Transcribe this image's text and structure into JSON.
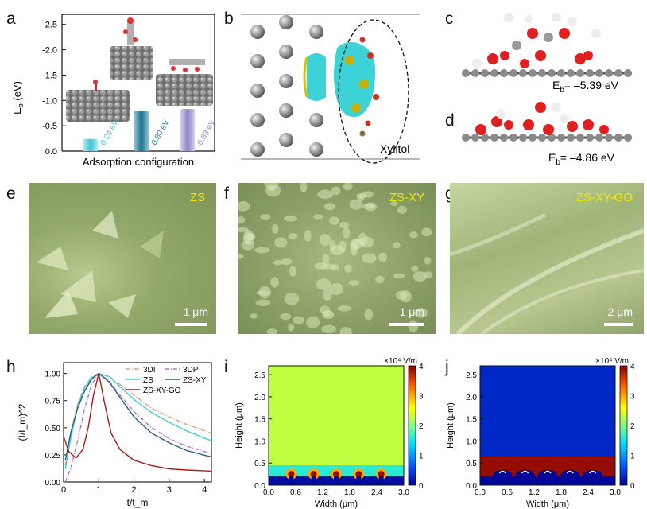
{
  "panels": {
    "a": "a",
    "b": "b",
    "c": "c",
    "d": "d",
    "e": "e",
    "f": "f",
    "g": "g",
    "h": "h",
    "i": "i",
    "j": "j"
  },
  "panel_a": {
    "ylabel_main": "E",
    "ylabel_sub": "b",
    "ylabel_unit": " (eV)",
    "xlabel": "Adsorption configuration",
    "yticks": [
      "-2.5",
      "-2.0",
      "-1.5",
      "-1.0",
      "-0.5",
      "0.0"
    ],
    "bars": [
      {
        "label": "-0.24 eV",
        "value": -0.24,
        "color": "#41c5d8"
      },
      {
        "label": "-0.80 eV",
        "value": -0.8,
        "color": "#2f7f9c"
      },
      {
        "label": "-0.83 eV",
        "value": -0.83,
        "color": "#9a8fd0"
      }
    ]
  },
  "panel_b": {
    "molecule": "Xylitol"
  },
  "panel_c": {
    "energy_prefix": "E",
    "energy_sub": "b",
    "energy_value": "= –5.39 eV"
  },
  "panel_d": {
    "energy_prefix": "E",
    "energy_sub": "b",
    "energy_value": "= –4.86 eV"
  },
  "panel_e": {
    "label": "ZS",
    "scale": "1 μm"
  },
  "panel_f": {
    "label": "ZS-XY",
    "scale": "1 μm"
  },
  "panel_g": {
    "label": "ZS-XY-GO",
    "scale": "2 μm"
  },
  "chart_data": [
    {
      "type": "line",
      "xlabel": "t/t_m",
      "ylabel": "(I/I_m)^2",
      "xlim": [
        0,
        4.2
      ],
      "ylim": [
        0,
        1.1
      ],
      "xticks": [
        "0",
        "1",
        "2",
        "3",
        "4"
      ],
      "yticks": [
        "0.00",
        "0.25",
        "0.50",
        "0.75",
        "1.00"
      ],
      "legend": [
        "3DI",
        "3DP",
        "ZS",
        "ZS-XY",
        "ZS-XY-GO"
      ],
      "series": [
        {
          "name": "3DI",
          "color": "#e0a070",
          "dash": "6,2,1,2",
          "x": [
            0.05,
            0.2,
            0.4,
            0.6,
            0.8,
            1.0,
            1.3,
            1.6,
            2.0,
            2.5,
            3.0,
            3.5,
            4.2
          ],
          "y": [
            0.15,
            0.45,
            0.72,
            0.88,
            0.97,
            1.0,
            0.97,
            0.9,
            0.8,
            0.68,
            0.6,
            0.53,
            0.45
          ]
        },
        {
          "name": "3DP",
          "color": "#b070d0",
          "dash": "5,2,1,2",
          "x": [
            0.05,
            0.2,
            0.4,
            0.6,
            0.8,
            1.0,
            1.3,
            1.6,
            2.0,
            2.5,
            3.0,
            3.5,
            4.2
          ],
          "y": [
            0.0,
            0.12,
            0.38,
            0.68,
            0.9,
            1.0,
            0.93,
            0.8,
            0.65,
            0.5,
            0.4,
            0.33,
            0.26
          ]
        },
        {
          "name": "ZS",
          "color": "#40d0d8",
          "dash": "",
          "x": [
            0.05,
            0.2,
            0.4,
            0.6,
            0.8,
            1.0,
            1.3,
            1.6,
            2.0,
            2.5,
            3.0,
            3.5,
            4.2
          ],
          "y": [
            0.12,
            0.4,
            0.7,
            0.87,
            0.96,
            1.0,
            0.97,
            0.88,
            0.76,
            0.64,
            0.55,
            0.47,
            0.38
          ]
        },
        {
          "name": "ZS-XY",
          "color": "#2a5f80",
          "dash": "",
          "x": [
            0.05,
            0.2,
            0.4,
            0.6,
            0.8,
            1.0,
            1.3,
            1.6,
            2.0,
            2.5,
            3.0,
            3.5,
            4.2
          ],
          "y": [
            0.2,
            0.45,
            0.68,
            0.84,
            0.95,
            1.0,
            0.92,
            0.78,
            0.6,
            0.45,
            0.36,
            0.29,
            0.23
          ]
        },
        {
          "name": "ZS-XY-GO",
          "color": "#b01818",
          "dash": "",
          "x": [
            0.0,
            0.15,
            0.35,
            0.55,
            0.7,
            0.85,
            1.0,
            1.15,
            1.35,
            1.6,
            2.0,
            2.5,
            3.0,
            3.5,
            4.2
          ],
          "y": [
            0.42,
            0.28,
            0.22,
            0.3,
            0.5,
            0.8,
            1.0,
            0.75,
            0.45,
            0.3,
            0.2,
            0.15,
            0.12,
            0.11,
            0.1
          ]
        }
      ]
    },
    {
      "type": "heatmap",
      "title": "×10⁴ V/m",
      "xlabel": "Width (μm)",
      "ylabel": "Height (μm)",
      "xticks": [
        "0.0",
        "0.6",
        "1.2",
        "1.8",
        "2.4",
        "3.0"
      ],
      "yticks": [
        "0.0",
        "0.5",
        "1.0",
        "1.5",
        "2.0",
        "2.5"
      ],
      "colorbar_ticks": [
        "0",
        "1",
        "2",
        "3",
        "4"
      ],
      "xlim": [
        0,
        3.0
      ],
      "ylim": [
        0,
        2.7
      ],
      "background_level": 2.3
    },
    {
      "type": "heatmap",
      "title": "×10⁴ V/m",
      "xlabel": "Width (μm)",
      "ylabel": "Height (μm)",
      "xticks": [
        "0.0",
        "0.6",
        "1.2",
        "1.8",
        "2.4",
        "3.0"
      ],
      "yticks": [
        "0.0",
        "0.5",
        "1.0",
        "1.5",
        "2.0",
        "2.5"
      ],
      "colorbar_ticks": [
        "0",
        "1",
        "2",
        "3",
        "4"
      ],
      "xlim": [
        0,
        3.0
      ],
      "ylim": [
        0,
        2.7
      ],
      "background_level": 0.3
    }
  ]
}
